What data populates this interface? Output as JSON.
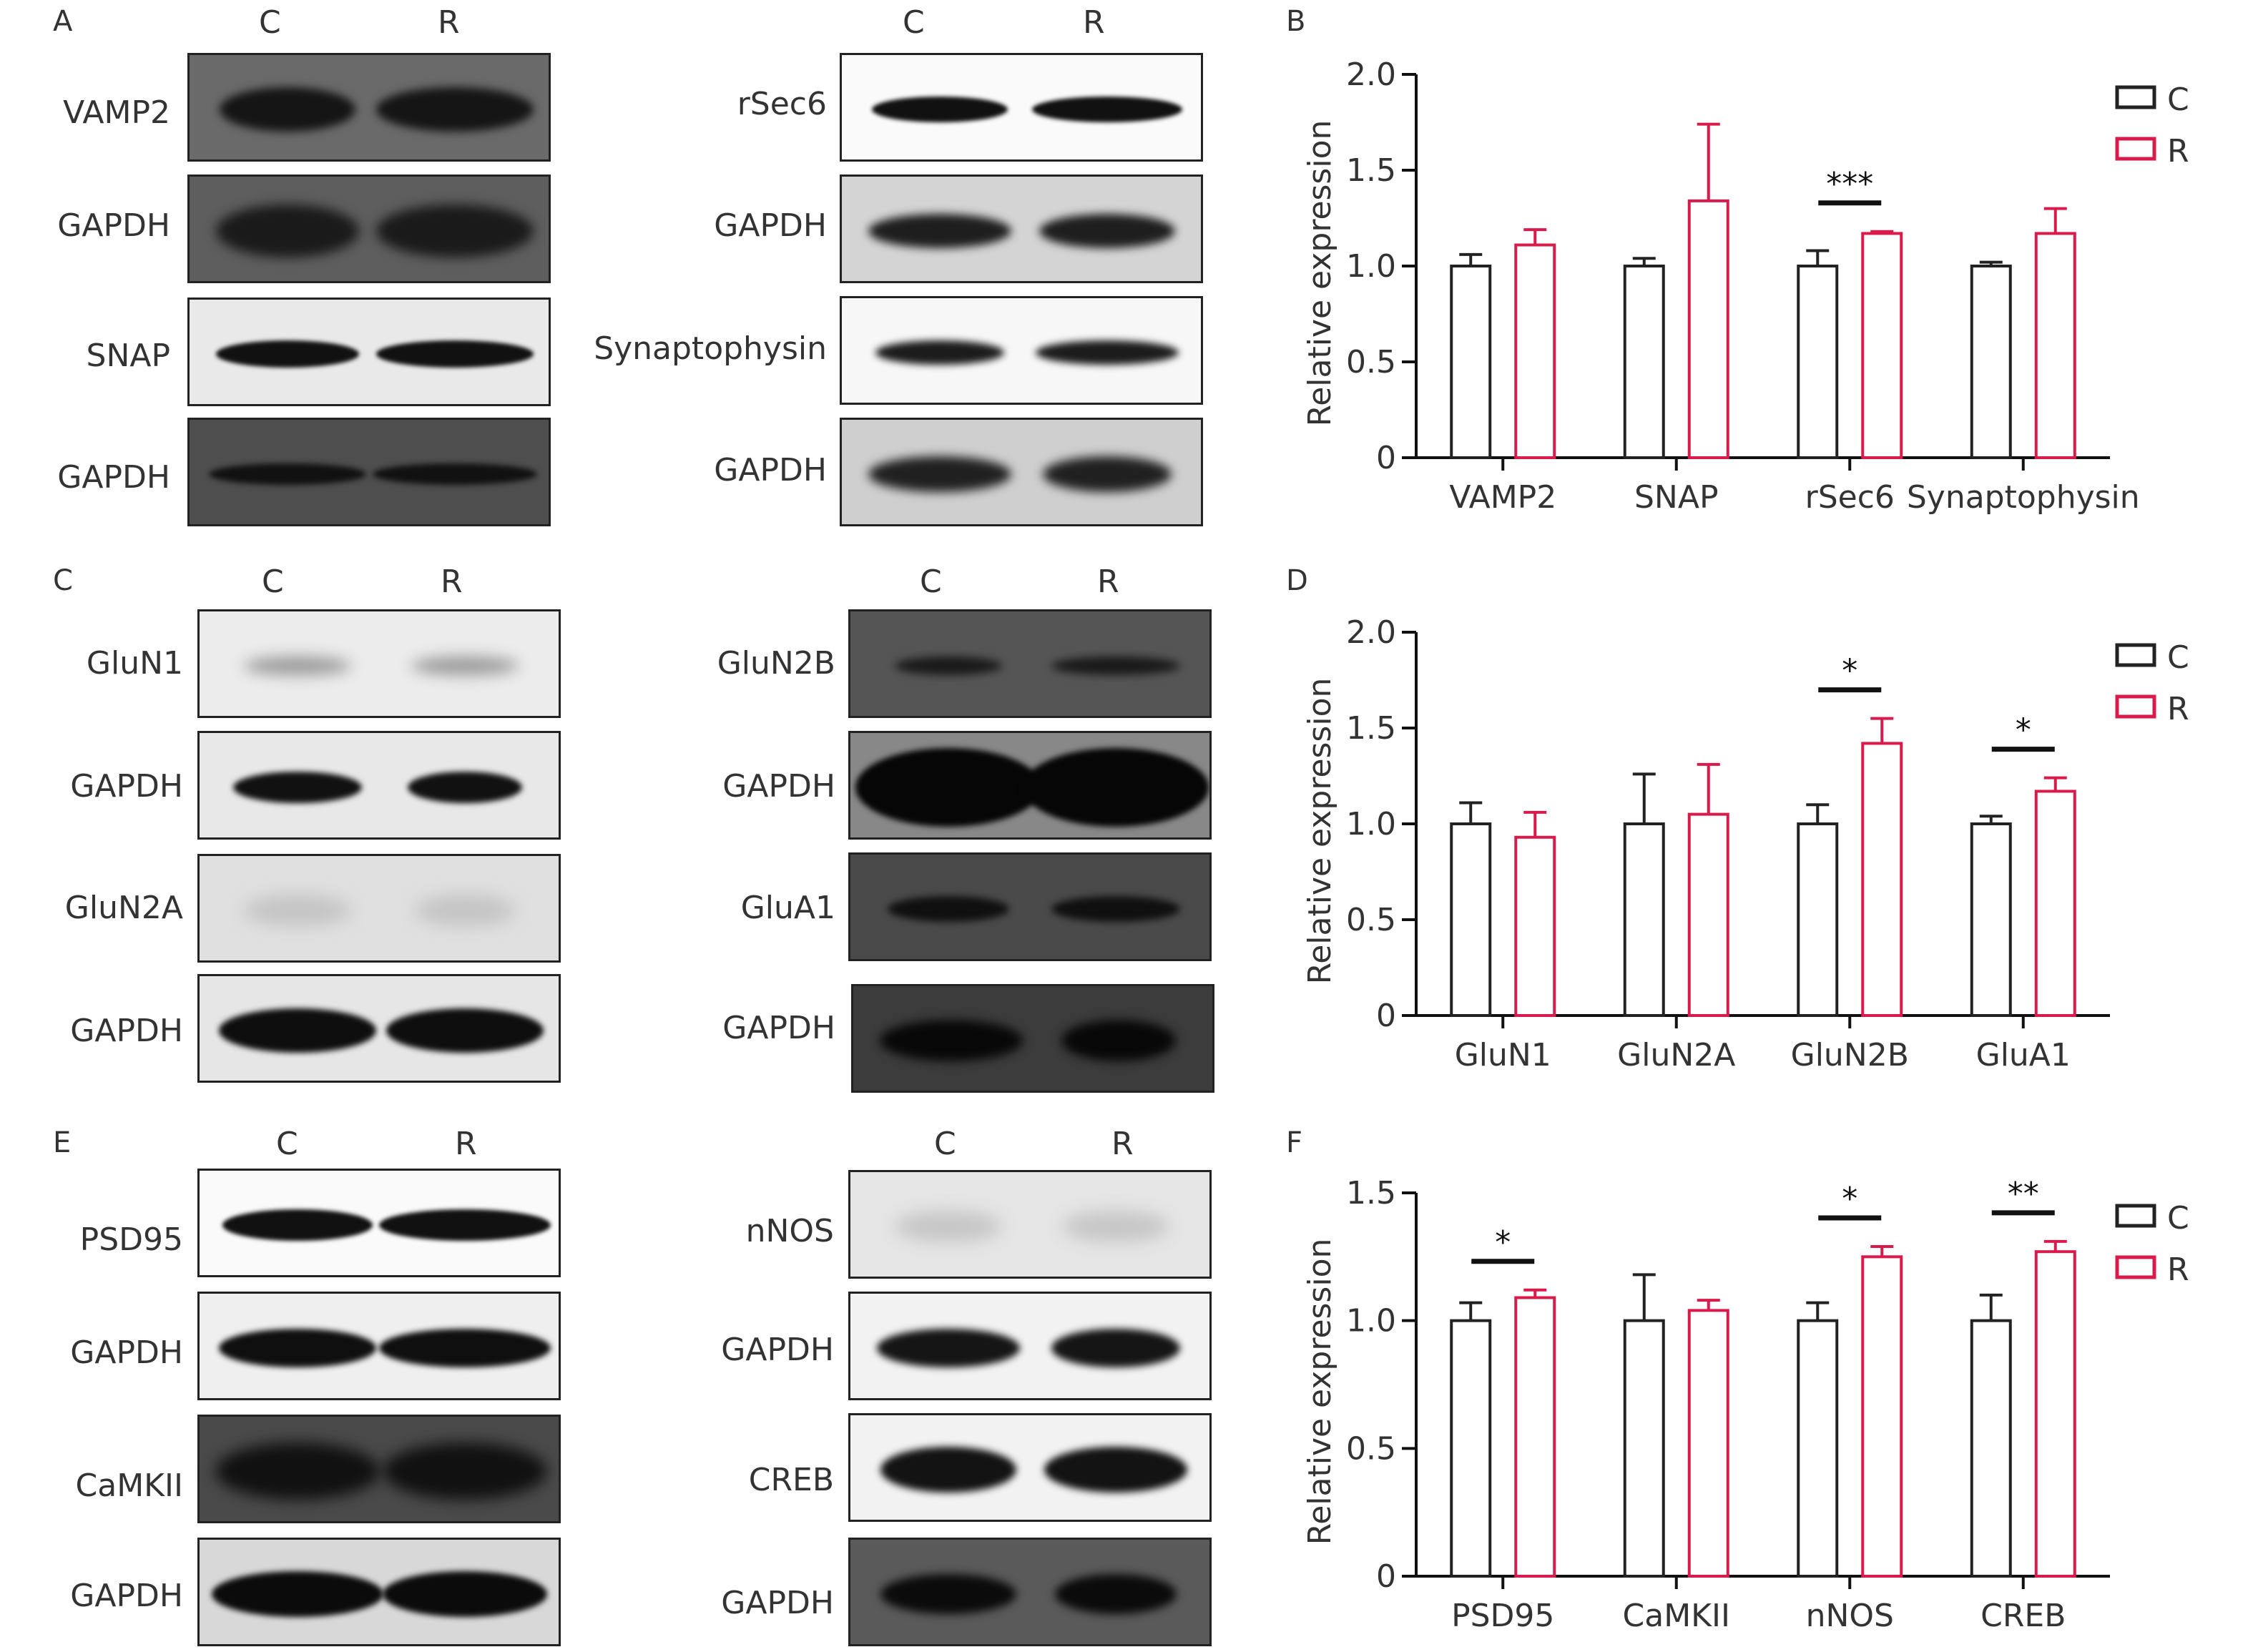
{
  "panels": [
    {
      "letter": "A",
      "lanes": [
        "C",
        "R"
      ]
    },
    {
      "letter": "",
      "lanes": [
        "C",
        "R"
      ]
    },
    {
      "letter": "B"
    },
    {
      "letter": "C",
      "lanes": [
        "C",
        "R"
      ]
    },
    {
      "letter": "",
      "lanes": [
        "C",
        "R"
      ]
    },
    {
      "letter": "D"
    },
    {
      "letter": "E",
      "lanes": [
        "C",
        "R"
      ]
    },
    {
      "letter": "",
      "lanes": [
        "C",
        "R"
      ]
    },
    {
      "letter": "F"
    }
  ],
  "blots": {
    "A_left": [
      "VAMP2",
      "GAPDH",
      "SNAP",
      "GAPDH"
    ],
    "A_right": [
      "rSec6",
      "GAPDH",
      "Synaptophysin",
      "GAPDH"
    ],
    "C_left": [
      "GluN1",
      "GAPDH",
      "GluN2A",
      "GAPDH"
    ],
    "C_right": [
      "GluN2B",
      "GAPDH",
      "GluA1",
      "GAPDH"
    ],
    "E_left": [
      "PSD95",
      "GAPDH",
      "CaMKII",
      "GAPDH"
    ],
    "E_right": [
      "nNOS",
      "GAPDH",
      "CREB",
      "GAPDH"
    ]
  },
  "colors": {
    "C": "#222222",
    "R": "#d81b4a"
  },
  "chart_data": [
    {
      "type": "bar",
      "panel": "B",
      "categories": [
        "VAMP2",
        "SNAP",
        "rSec6",
        "Synaptophysin"
      ],
      "series": [
        {
          "name": "C",
          "values": [
            1.0,
            1.0,
            1.0,
            1.0
          ],
          "errors": [
            0.06,
            0.04,
            0.08,
            0.02
          ]
        },
        {
          "name": "R",
          "values": [
            1.11,
            1.34,
            1.17,
            1.17
          ],
          "errors": [
            0.08,
            0.4,
            0.01,
            0.13
          ]
        }
      ],
      "significance": [
        "",
        "",
        "***",
        ""
      ],
      "ylabel": "Relative expression",
      "ylim": [
        0,
        2.0
      ],
      "yticks": [
        "0",
        "0.5",
        "1.0",
        "1.5",
        "2.0"
      ],
      "legend": "top-right"
    },
    {
      "type": "bar",
      "panel": "D",
      "categories": [
        "GluN1",
        "GluN2A",
        "GluN2B",
        "GluA1"
      ],
      "series": [
        {
          "name": "C",
          "values": [
            1.0,
            1.0,
            1.0,
            1.0
          ],
          "errors": [
            0.11,
            0.26,
            0.1,
            0.04
          ]
        },
        {
          "name": "R",
          "values": [
            0.93,
            1.05,
            1.42,
            1.17
          ],
          "errors": [
            0.13,
            0.26,
            0.13,
            0.07
          ]
        }
      ],
      "significance": [
        "",
        "",
        "*",
        "*"
      ],
      "ylabel": "Relative expression",
      "ylim": [
        0,
        2.0
      ],
      "yticks": [
        "0",
        "0.5",
        "1.0",
        "1.5",
        "2.0"
      ],
      "legend": "top-right"
    },
    {
      "type": "bar",
      "panel": "F",
      "categories": [
        "PSD95",
        "CaMKII",
        "nNOS",
        "CREB"
      ],
      "series": [
        {
          "name": "C",
          "values": [
            1.0,
            1.0,
            1.0,
            1.0
          ],
          "errors": [
            0.07,
            0.18,
            0.07,
            0.1
          ]
        },
        {
          "name": "R",
          "values": [
            1.09,
            1.04,
            1.25,
            1.27
          ],
          "errors": [
            0.03,
            0.04,
            0.04,
            0.04
          ]
        }
      ],
      "significance": [
        "*",
        "",
        "*",
        "**"
      ],
      "ylabel": "Relative expression",
      "ylim": [
        0,
        1.5
      ],
      "yticks": [
        "0",
        "0.5",
        "1.0",
        "1.5"
      ],
      "legend": "top-right"
    }
  ]
}
